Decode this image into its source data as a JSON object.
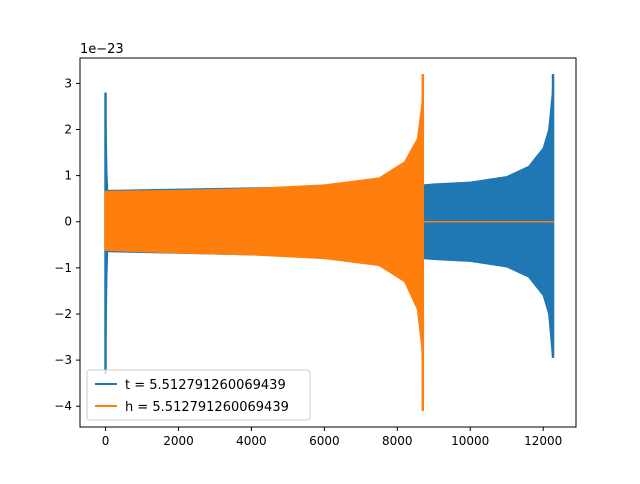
{
  "chart_data": {
    "type": "line",
    "title": "",
    "xlabel": "",
    "ylabel": "",
    "offset_text": "1e−23",
    "xlim": [
      -700,
      12900
    ],
    "ylim": [
      -4.45,
      3.55
    ],
    "x_ticks": [
      0,
      2000,
      4000,
      6000,
      8000,
      10000,
      12000
    ],
    "y_ticks": [
      -4,
      -3,
      -2,
      -1,
      0,
      1,
      2,
      3
    ],
    "grid": false,
    "legend_position": "lower-left",
    "series": [
      {
        "name": "t = 5.512791260069439",
        "color": "#1f77b4",
        "x_range": [
          0,
          12290
        ],
        "envelope": [
          {
            "x": 0,
            "upper": 2.8,
            "lower": -3.3
          },
          {
            "x": 50,
            "upper": 0.68,
            "lower": -0.65
          },
          {
            "x": 8715,
            "upper": 0.8,
            "lower": -0.8
          },
          {
            "x": 9000,
            "upper": 0.82,
            "lower": -0.82
          },
          {
            "x": 10000,
            "upper": 0.86,
            "lower": -0.86
          },
          {
            "x": 11000,
            "upper": 0.98,
            "lower": -0.98
          },
          {
            "x": 11600,
            "upper": 1.2,
            "lower": -1.2
          },
          {
            "x": 12000,
            "upper": 1.6,
            "lower": -1.6
          },
          {
            "x": 12150,
            "upper": 2.0,
            "lower": -2.0
          },
          {
            "x": 12250,
            "upper": 2.8,
            "lower": -2.9
          },
          {
            "x": 12270,
            "upper": 3.2,
            "lower": -2.95
          }
        ]
      },
      {
        "name": "h = 5.512791260069439",
        "color": "#ff7f0e",
        "x_range": [
          0,
          12290
        ],
        "envelope": [
          {
            "x": 0,
            "upper": 0.66,
            "lower": -0.62
          },
          {
            "x": 2000,
            "upper": 0.68,
            "lower": -0.68
          },
          {
            "x": 4000,
            "upper": 0.72,
            "lower": -0.72
          },
          {
            "x": 6000,
            "upper": 0.8,
            "lower": -0.8
          },
          {
            "x": 7500,
            "upper": 0.95,
            "lower": -0.95
          },
          {
            "x": 8200,
            "upper": 1.3,
            "lower": -1.3
          },
          {
            "x": 8550,
            "upper": 1.8,
            "lower": -1.9
          },
          {
            "x": 8680,
            "upper": 2.6,
            "lower": -2.8
          },
          {
            "x": 8700,
            "upper": 3.2,
            "lower": -4.1
          }
        ],
        "flat_after": {
          "x": 8720,
          "value": 0.0
        }
      }
    ]
  }
}
